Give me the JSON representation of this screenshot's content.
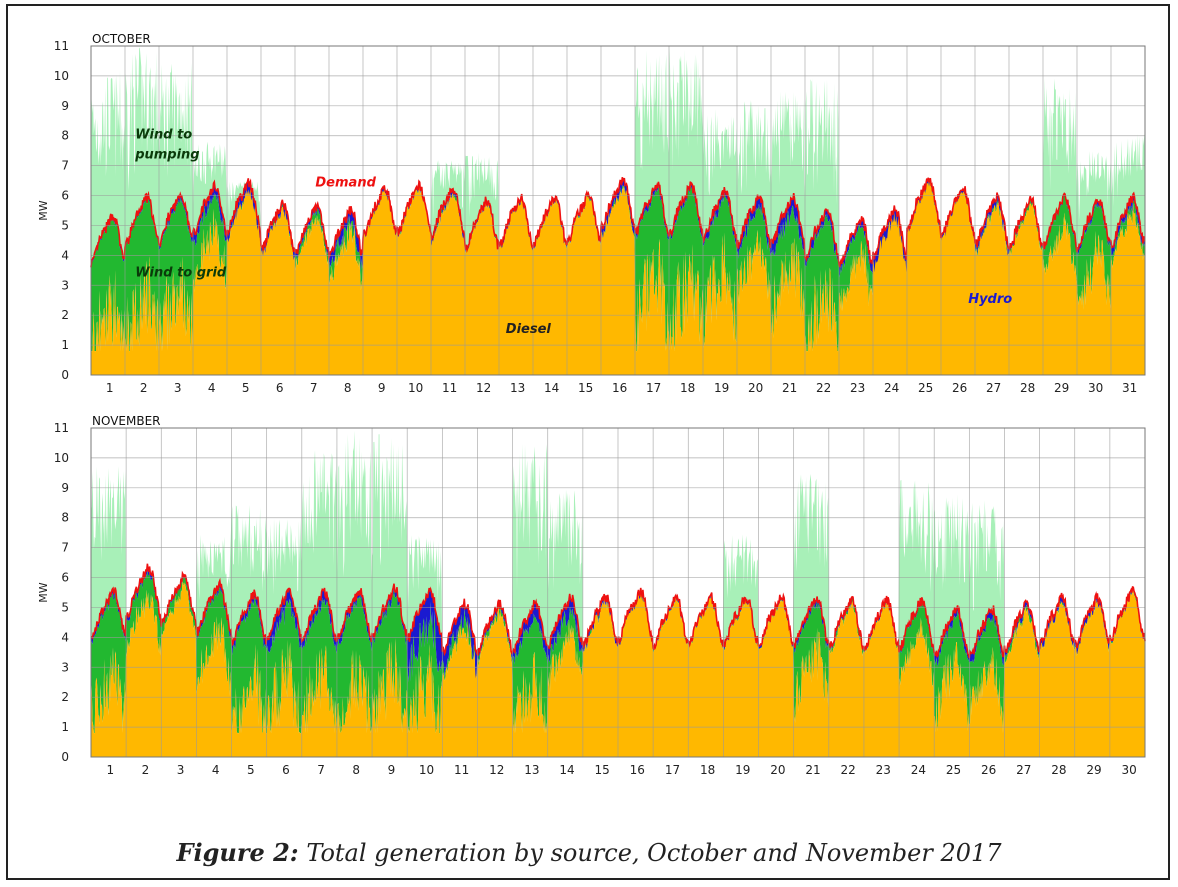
{
  "caption": {
    "prefix": "Figure 2:",
    "text": "Total generation by source, October and November 2017"
  },
  "colors": {
    "diesel": "#FFB800",
    "wind_grid": "#22B830",
    "wind_pumping": "#A8F0B8",
    "hydro": "#1A1AD0",
    "demand": "#EE1111"
  },
  "chart_data": [
    {
      "type": "area",
      "title": "OCTOBER",
      "ylabel": "MW",
      "ylim": [
        0,
        11
      ],
      "yticks": [
        "0",
        "1",
        "2",
        "3",
        "4",
        "5",
        "6",
        "7",
        "8",
        "9",
        "10",
        "11"
      ],
      "days": 31,
      "xticks": [
        "1",
        "2",
        "3",
        "4",
        "5",
        "6",
        "7",
        "8",
        "9",
        "10",
        "11",
        "12",
        "13",
        "14",
        "15",
        "16",
        "17",
        "18",
        "19",
        "20",
        "21",
        "22",
        "23",
        "24",
        "25",
        "26",
        "27",
        "28",
        "29",
        "30",
        "31"
      ],
      "grid": true,
      "annotations": [
        {
          "text": "Wind to pumping",
          "lines": [
            "Wind to",
            "pumping"
          ],
          "day": 1.3,
          "mw": 7.9,
          "color": "#0a3a0a"
        },
        {
          "text": "Wind to grid",
          "lines": [
            "Wind to grid"
          ],
          "day": 1.3,
          "mw": 3.3,
          "color": "#0a3a0a"
        },
        {
          "text": "Demand",
          "lines": [
            "Demand"
          ],
          "day": 6.6,
          "mw": 6.3,
          "color": "#EE1111"
        },
        {
          "text": "Diesel",
          "lines": [
            "Diesel"
          ],
          "day": 12.2,
          "mw": 1.4,
          "color": "#222222"
        },
        {
          "text": "Hydro",
          "lines": [
            "Hydro"
          ],
          "day": 25.8,
          "mw": 2.4,
          "color": "#1A1AD0"
        }
      ],
      "series_daily": {
        "demand_mean": [
          4.6,
          5.2,
          5.3,
          5.6,
          5.7,
          5.0,
          4.9,
          4.8,
          5.5,
          5.6,
          5.5,
          5.1,
          5.2,
          5.2,
          5.3,
          5.8,
          5.6,
          5.6,
          5.4,
          5.2,
          5.2,
          4.8,
          4.5,
          4.8,
          5.8,
          5.5,
          5.2,
          5.1,
          5.2,
          5.1,
          5.2
        ],
        "wind_grid_depth": [
          3.0,
          3.4,
          3.2,
          1.5,
          0.3,
          0.2,
          0.4,
          0.8,
          0.1,
          0.1,
          0.2,
          0.1,
          0.1,
          0.1,
          0.1,
          0.3,
          3.0,
          3.2,
          2.6,
          1.6,
          2.2,
          2.8,
          1.2,
          0.3,
          0.1,
          0.1,
          0.3,
          0.2,
          1.0,
          1.8,
          0.5
        ],
        "wind_pumping_peak": [
          10.2,
          11.0,
          10.5,
          7.8,
          6.5,
          0,
          0,
          0,
          0,
          0,
          7.2,
          7.5,
          0,
          0,
          0,
          0,
          11.0,
          11.0,
          9.0,
          9.2,
          9.5,
          10.0,
          0,
          0,
          0,
          0,
          0,
          0,
          10.0,
          7.5,
          8.2
        ],
        "hydro_width": [
          0.1,
          0.1,
          0.2,
          0.4,
          0.5,
          0.3,
          0.2,
          0.5,
          0.3,
          0.1,
          0.2,
          0.1,
          0.2,
          0.1,
          0.1,
          0.4,
          0.2,
          0.2,
          0.3,
          0.4,
          0.6,
          0.3,
          0.3,
          1.2,
          0.3,
          0.2,
          0.3,
          0.1,
          0.1,
          0.2,
          0.3
        ]
      }
    },
    {
      "type": "area",
      "title": "NOVEMBER",
      "ylabel": "MW",
      "ylim": [
        0,
        11
      ],
      "yticks": [
        "0",
        "1",
        "2",
        "3",
        "4",
        "5",
        "6",
        "7",
        "8",
        "9",
        "10",
        "11"
      ],
      "days": 30,
      "xticks": [
        "1",
        "2",
        "3",
        "4",
        "5",
        "6",
        "7",
        "8",
        "9",
        "10",
        "11",
        "12",
        "13",
        "14",
        "15",
        "16",
        "17",
        "18",
        "19",
        "20",
        "21",
        "22",
        "23",
        "24",
        "25",
        "26",
        "27",
        "28",
        "29",
        "30"
      ],
      "grid": true,
      "annotations": [],
      "series_daily": {
        "demand_mean": [
          4.8,
          5.6,
          5.3,
          5.0,
          4.7,
          4.8,
          4.8,
          4.8,
          4.9,
          4.8,
          4.4,
          4.4,
          4.4,
          4.6,
          4.6,
          4.8,
          4.6,
          4.6,
          4.6,
          4.6,
          4.6,
          4.5,
          4.5,
          4.5,
          4.2,
          4.2,
          4.4,
          4.6,
          4.6,
          4.8
        ],
        "wind_grid_depth": [
          2.6,
          1.0,
          0.4,
          1.6,
          2.8,
          2.8,
          2.6,
          2.8,
          2.6,
          3.0,
          0.8,
          0.3,
          2.6,
          1.2,
          0.2,
          0.1,
          0.1,
          0.1,
          0.1,
          0.1,
          1.8,
          0.2,
          0.1,
          1.0,
          1.8,
          1.8,
          0.3,
          0.2,
          0.2,
          0.1
        ],
        "wind_pumping_peak": [
          9.8,
          0,
          0,
          7.5,
          8.5,
          8.0,
          10.5,
          11.0,
          10.8,
          7.5,
          0,
          0,
          10.5,
          9.0,
          0,
          0,
          0,
          0,
          7.5,
          0,
          9.5,
          0,
          0,
          9.3,
          8.8,
          8.6,
          0,
          0,
          0,
          0
        ],
        "hydro_width": [
          0.2,
          0.2,
          0.1,
          0.2,
          0.3,
          0.6,
          0.4,
          0.3,
          0.3,
          1.4,
          0.8,
          0.2,
          0.5,
          0.6,
          0.2,
          0.3,
          0.1,
          0.1,
          0.1,
          0.1,
          0.2,
          0.1,
          0.1,
          0.1,
          0.3,
          0.3,
          0.2,
          0.3,
          0.3,
          0.1
        ]
      }
    }
  ]
}
